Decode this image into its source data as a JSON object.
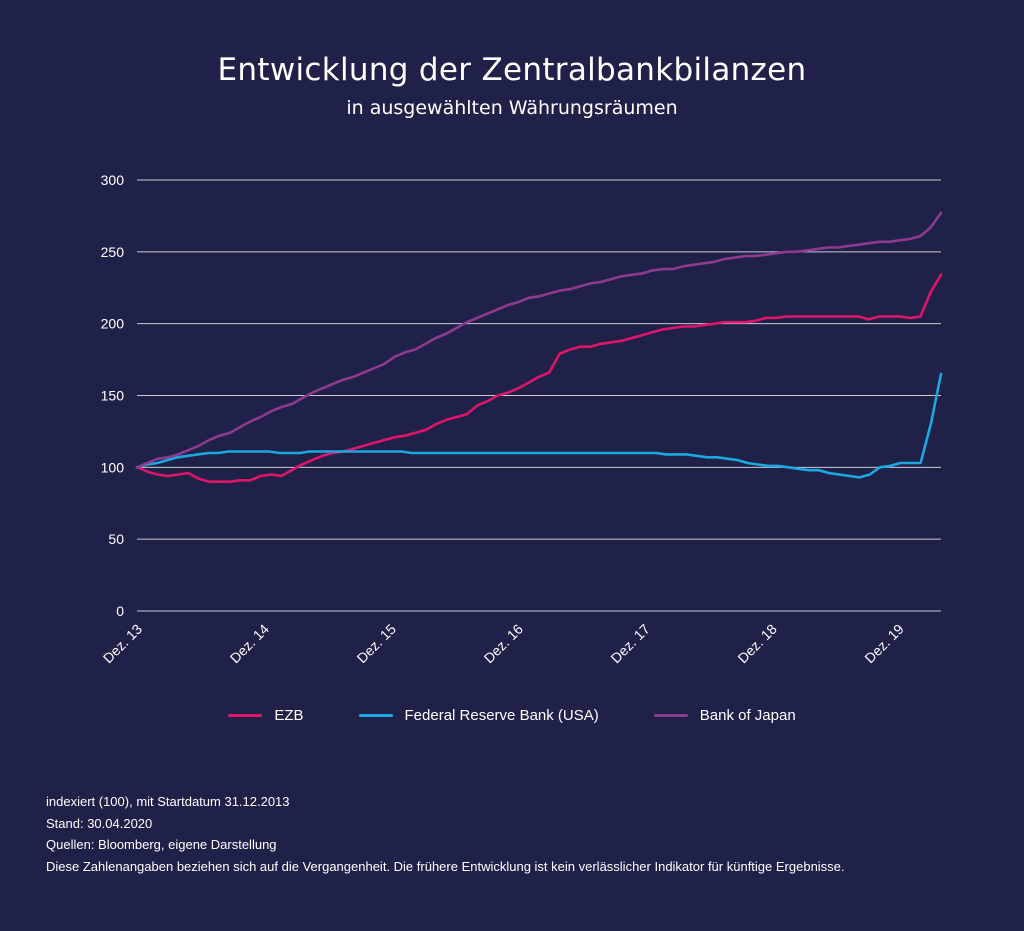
{
  "title": "Entwicklung der Zentralbankbilanzen",
  "subtitle": "in ausgewählten Währungsräumen",
  "colors": {
    "background": "#1f2149",
    "grid": "#c9cad6",
    "ezb": "#e0156a",
    "fed": "#1ba8e0",
    "boj": "#8e3a8e"
  },
  "chart_data": {
    "type": "line",
    "ylim": [
      0,
      300
    ],
    "yticks": [
      0,
      50,
      100,
      150,
      200,
      250,
      300
    ],
    "grid": true,
    "legend_position": "bottom-center",
    "x_tick_labels": [
      "Dez. 13",
      "Dez. 14",
      "Dez. 15",
      "Dez. 16",
      "Dez. 17",
      "Dez. 18",
      "Dez. 19"
    ],
    "x_start": "2013-12",
    "x_end": "2020-04",
    "series": [
      {
        "name": "EZB",
        "color": "#e0156a",
        "values": [
          100,
          97,
          95,
          94,
          95,
          96,
          92,
          90,
          90,
          90,
          91,
          91,
          94,
          95,
          94,
          98,
          102,
          105,
          108,
          110,
          111,
          113,
          115,
          117,
          119,
          121,
          122,
          124,
          126,
          130,
          133,
          135,
          137,
          143,
          146,
          150,
          152,
          155,
          159,
          163,
          166,
          179,
          182,
          184,
          184,
          186,
          187,
          188,
          190,
          192,
          194,
          196,
          197,
          198,
          198,
          199,
          200,
          201,
          201,
          201,
          202,
          204,
          204,
          205,
          205,
          205,
          205,
          205,
          205,
          205,
          205,
          203,
          205,
          205,
          205,
          204,
          205,
          222,
          234
        ]
      },
      {
        "name": "Federal Reserve Bank (USA)",
        "color": "#1ba8e0",
        "values": [
          100,
          102,
          103,
          105,
          107,
          108,
          109,
          110,
          110,
          111,
          111,
          111,
          111,
          111,
          110,
          110,
          110,
          111,
          111,
          111,
          111,
          111,
          111,
          111,
          111,
          111,
          111,
          110,
          110,
          110,
          110,
          110,
          110,
          110,
          110,
          110,
          110,
          110,
          110,
          110,
          110,
          110,
          110,
          110,
          110,
          110,
          110,
          110,
          110,
          110,
          110,
          110,
          109,
          109,
          109,
          108,
          107,
          107,
          106,
          105,
          103,
          102,
          101,
          101,
          100,
          99,
          98,
          98,
          96,
          95,
          94,
          93,
          95,
          100,
          101,
          103,
          103,
          103,
          130,
          165
        ]
      },
      {
        "name": "Bank of Japan",
        "color": "#8e3a8e",
        "values": [
          100,
          103,
          106,
          107,
          109,
          112,
          115,
          119,
          122,
          124,
          128,
          132,
          135,
          139,
          142,
          144,
          148,
          152,
          155,
          158,
          161,
          163,
          166,
          169,
          172,
          177,
          180,
          182,
          186,
          190,
          193,
          197,
          201,
          204,
          207,
          210,
          213,
          215,
          218,
          219,
          221,
          223,
          224,
          226,
          228,
          229,
          231,
          233,
          234,
          235,
          237,
          238,
          238,
          240,
          241,
          242,
          243,
          245,
          246,
          247,
          247,
          248,
          249,
          250,
          250,
          251,
          252,
          253,
          253,
          254,
          255,
          256,
          257,
          257,
          258,
          259,
          261,
          267,
          277
        ]
      }
    ]
  },
  "footnotes": [
    "indexiert (100), mit Startdatum 31.12.2013",
    "Stand: 30.04.2020",
    "Quellen: Bloomberg, eigene Darstellung",
    "Diese Zahlenangaben beziehen sich auf die Vergangenheit. Die frühere Entwicklung ist kein verlässlicher Indikator für künftige Ergebnisse."
  ]
}
